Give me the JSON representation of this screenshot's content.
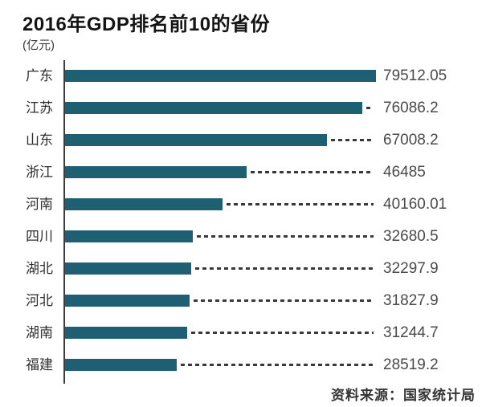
{
  "chart": {
    "title": "2016年GDP排名前10的省份",
    "unit": "(亿元)",
    "source": "资料来源：国家统计局"
  },
  "chart_data": {
    "type": "bar",
    "orientation": "horizontal",
    "title": "2016年GDP排名前10的省份",
    "unit_label": "(亿元)",
    "categories": [
      "广东",
      "江苏",
      "山东",
      "浙江",
      "河南",
      "四川",
      "湖北",
      "河北",
      "湖南",
      "福建"
    ],
    "values": [
      79512.05,
      76086.2,
      67008.2,
      46485,
      40160.01,
      32680.5,
      32297.9,
      31827.9,
      31244.7,
      28519.2
    ],
    "value_labels": [
      "79512.05",
      "76086.2",
      "67008.2",
      "46485",
      "40160.01",
      "32680.5",
      "32297.9",
      "31827.9",
      "31244.7",
      "28519.2"
    ],
    "xlim": [
      0,
      79512.05
    ],
    "bar_color": "#1e5f73",
    "axis_color": "#3d3d3d",
    "leader_line_style": "dashed",
    "grid": false,
    "legend": false,
    "source": "资料来源：国家统计局"
  }
}
